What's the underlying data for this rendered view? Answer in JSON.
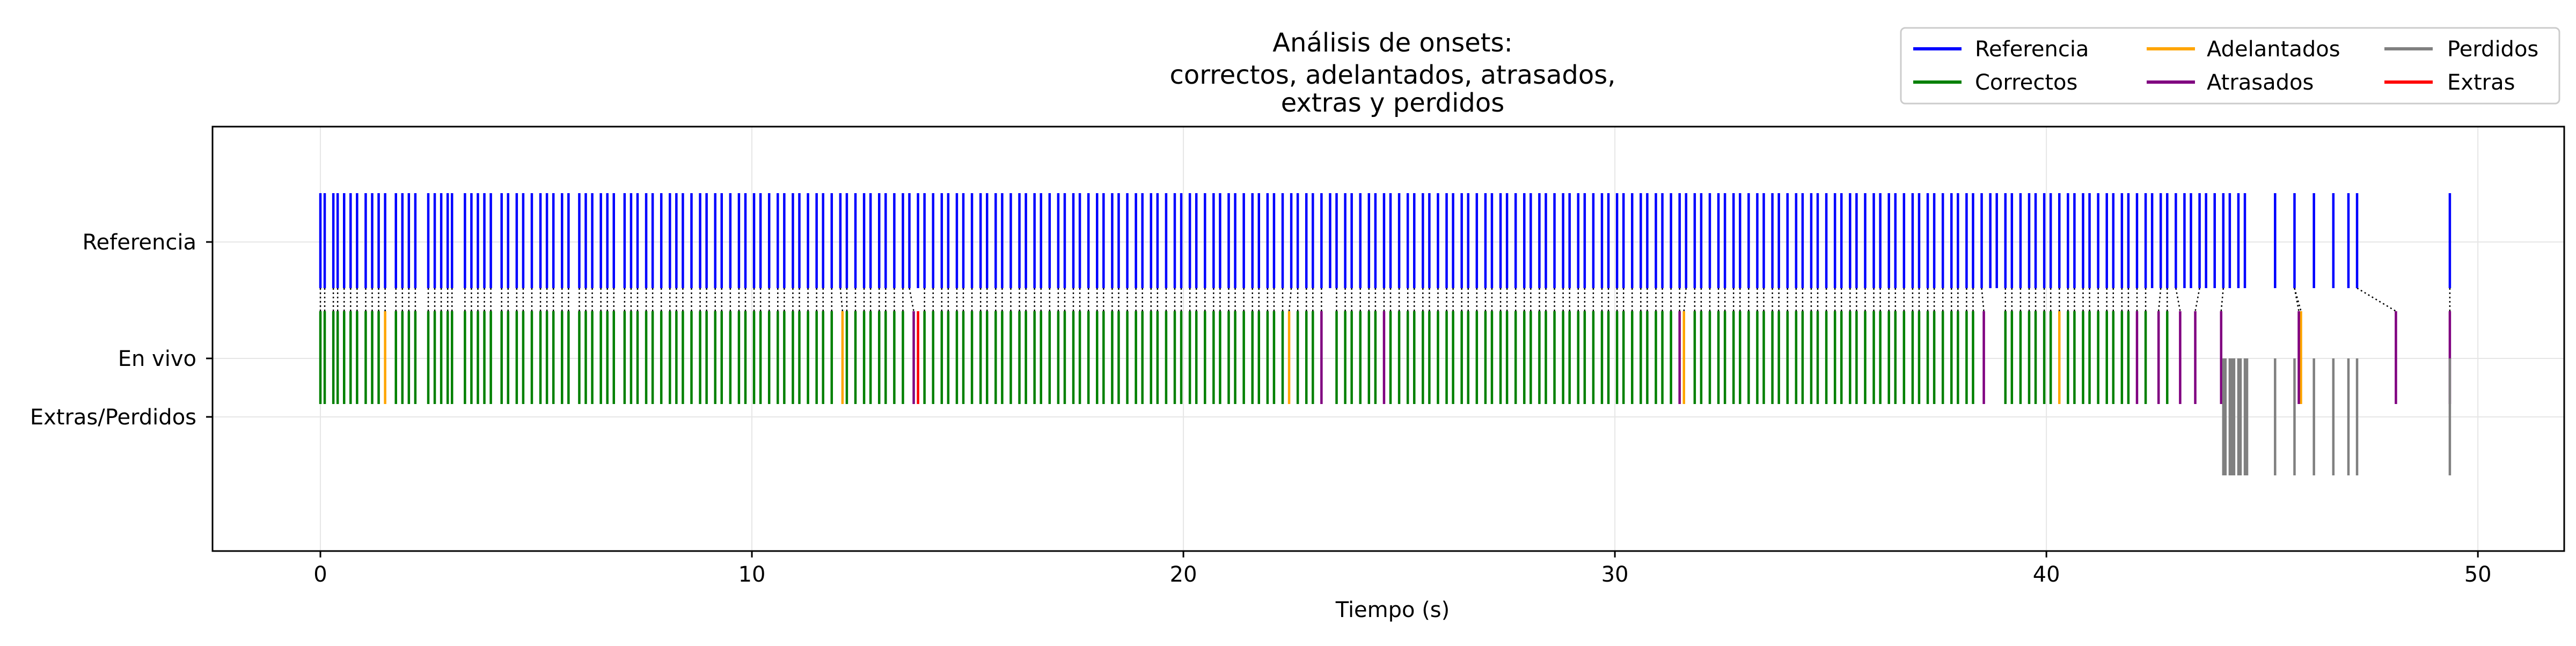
{
  "chart_data": {
    "type": "event-raster",
    "title_lines": [
      "Análisis de onsets:",
      "correctos, adelantados, atrasados,",
      "extras y perdidos"
    ],
    "xlabel": "Tiempo (s)",
    "xlim": [
      -2.5,
      52.0
    ],
    "xticks": [
      0,
      10,
      20,
      30,
      40,
      50
    ],
    "row_labels": [
      "Referencia",
      "En vivo",
      "Extras/Perdidos"
    ],
    "grid": true,
    "legend": {
      "placement": "top-right",
      "entries": [
        {
          "label": "Referencia",
          "color": "#0000ff"
        },
        {
          "label": "Correctos",
          "color": "#008000"
        },
        {
          "label": "Adelantados",
          "color": "#ffa500"
        },
        {
          "label": "Atrasados",
          "color": "#800080"
        },
        {
          "label": "Perdidos",
          "color": "#808080"
        },
        {
          "label": "Extras",
          "color": "#ff0000"
        }
      ]
    },
    "colors": {
      "reference": "#0000ff",
      "correct": "#008000",
      "early": "#ffa500",
      "late": "#800080",
      "missed": "#808080",
      "extra": "#ff0000",
      "match_line": "#000000"
    },
    "series": [
      {
        "name": "Referencia",
        "category": "reference",
        "times": [
          0.0,
          0.1,
          0.3,
          0.4,
          0.55,
          0.7,
          0.85,
          1.05,
          1.2,
          1.35,
          1.5,
          1.75,
          1.9,
          2.05,
          2.2,
          2.5,
          2.65,
          2.8,
          2.95,
          3.05,
          3.35,
          3.5,
          3.65,
          3.8,
          3.95,
          4.2,
          4.35,
          4.55,
          4.7,
          4.9,
          5.1,
          5.25,
          5.4,
          5.6,
          5.75,
          6.0,
          6.15,
          6.3,
          6.5,
          6.65,
          6.8,
          7.05,
          7.2,
          7.35,
          7.55,
          7.7,
          7.9,
          8.1,
          8.25,
          8.4,
          8.6,
          8.8,
          8.95,
          9.15,
          9.3,
          9.5,
          9.7,
          9.85,
          10.05,
          10.2,
          10.4,
          10.6,
          10.75,
          10.95,
          11.1,
          11.3,
          11.5,
          11.65,
          11.85,
          12.05,
          12.2,
          12.4,
          12.6,
          12.75,
          12.95,
          13.1,
          13.3,
          13.5,
          13.65,
          13.85,
          14.0,
          14.2,
          14.4,
          14.55,
          14.75,
          14.9,
          15.1,
          15.3,
          15.45,
          15.65,
          15.8,
          16.0,
          16.2,
          16.35,
          16.55,
          16.7,
          16.9,
          17.1,
          17.25,
          17.45,
          17.6,
          17.8,
          18.0,
          18.15,
          18.35,
          18.5,
          18.7,
          18.9,
          19.05,
          19.25,
          19.4,
          19.6,
          19.8,
          19.95,
          20.15,
          20.3,
          20.5,
          20.7,
          20.85,
          21.05,
          21.2,
          21.4,
          21.6,
          21.75,
          21.95,
          22.1,
          22.3,
          22.5,
          22.65,
          22.85,
          23.0,
          23.2,
          23.4,
          23.55,
          23.75,
          23.9,
          24.1,
          24.3,
          24.45,
          24.65,
          24.8,
          25.0,
          25.2,
          25.35,
          25.55,
          25.7,
          25.9,
          26.1,
          26.25,
          26.45,
          26.6,
          26.8,
          27.0,
          27.15,
          27.35,
          27.5,
          27.7,
          27.9,
          28.05,
          28.25,
          28.4,
          28.6,
          28.8,
          28.95,
          29.15,
          29.3,
          29.5,
          29.7,
          29.85,
          30.05,
          30.2,
          30.4,
          30.6,
          30.75,
          30.95,
          31.1,
          31.3,
          31.5,
          31.65,
          31.85,
          32.0,
          32.2,
          32.4,
          32.55,
          32.75,
          32.9,
          33.1,
          33.3,
          33.45,
          33.65,
          33.8,
          34.0,
          34.2,
          34.35,
          34.55,
          34.7,
          34.9,
          35.1,
          35.25,
          35.45,
          35.6,
          35.8,
          36.0,
          36.15,
          36.35,
          36.5,
          36.7,
          36.9,
          37.05,
          37.25,
          37.4,
          37.6,
          37.8,
          37.95,
          38.15,
          38.3,
          38.5,
          38.7,
          38.85,
          39.05,
          39.2,
          39.4,
          39.6,
          39.75,
          39.95,
          40.1,
          40.3,
          40.5,
          40.65,
          40.85,
          41.0,
          41.2,
          41.4,
          41.55,
          41.75,
          41.9,
          42.1,
          42.3,
          42.45,
          42.65,
          42.8,
          43.0,
          43.2,
          43.35,
          43.55,
          43.7,
          43.9,
          44.1,
          44.25,
          44.45,
          44.6,
          45.3,
          45.75,
          46.2,
          46.65,
          47.0,
          47.2,
          49.35
        ]
      },
      {
        "name": "Correctos",
        "category": "correct",
        "times": [
          0.0,
          0.1,
          0.3,
          0.4,
          0.55,
          0.7,
          0.85,
          1.05,
          1.2,
          1.35,
          1.75,
          1.9,
          2.05,
          2.2,
          2.5,
          2.65,
          2.8,
          2.95,
          3.05,
          3.35,
          3.5,
          3.65,
          3.8,
          3.95,
          4.2,
          4.35,
          4.55,
          4.7,
          4.9,
          5.1,
          5.25,
          5.4,
          5.6,
          5.75,
          6.0,
          6.15,
          6.3,
          6.5,
          6.65,
          6.8,
          7.05,
          7.2,
          7.35,
          7.55,
          7.7,
          7.9,
          8.1,
          8.25,
          8.4,
          8.6,
          8.8,
          8.95,
          9.15,
          9.3,
          9.5,
          9.7,
          9.85,
          10.05,
          10.2,
          10.4,
          10.6,
          10.75,
          10.95,
          11.1,
          11.3,
          11.5,
          11.65,
          11.85,
          12.2,
          12.4,
          12.6,
          12.75,
          12.95,
          13.1,
          13.3,
          13.5,
          14.0,
          14.2,
          14.4,
          14.55,
          14.75,
          14.9,
          15.1,
          15.3,
          15.45,
          15.65,
          15.8,
          16.0,
          16.2,
          16.35,
          16.55,
          16.7,
          16.9,
          17.1,
          17.25,
          17.45,
          17.6,
          17.8,
          18.0,
          18.15,
          18.35,
          18.5,
          18.7,
          18.9,
          19.05,
          19.25,
          19.4,
          19.6,
          19.8,
          19.95,
          20.15,
          20.3,
          20.5,
          20.7,
          20.85,
          21.05,
          21.2,
          21.4,
          21.6,
          21.75,
          21.95,
          22.1,
          22.3,
          22.65,
          22.85,
          23.0,
          23.55,
          23.75,
          23.9,
          24.1,
          24.3,
          24.45,
          24.8,
          25.0,
          25.2,
          25.35,
          25.55,
          25.7,
          25.9,
          26.1,
          26.25,
          26.45,
          26.6,
          26.8,
          27.0,
          27.15,
          27.35,
          27.5,
          27.7,
          27.9,
          28.05,
          28.25,
          28.4,
          28.6,
          28.8,
          28.95,
          29.15,
          29.3,
          29.5,
          29.7,
          29.85,
          30.05,
          30.2,
          30.4,
          30.6,
          30.75,
          30.95,
          31.1,
          31.3,
          31.85,
          32.0,
          32.2,
          32.4,
          32.55,
          32.75,
          32.9,
          33.1,
          33.3,
          33.45,
          33.65,
          33.8,
          34.0,
          34.2,
          34.35,
          34.55,
          34.7,
          34.9,
          35.1,
          35.25,
          35.45,
          35.6,
          35.8,
          36.0,
          36.15,
          36.35,
          36.5,
          36.7,
          36.9,
          37.05,
          37.25,
          37.4,
          37.6,
          37.8,
          37.95,
          38.15,
          38.3,
          39.05,
          39.2,
          39.4,
          39.6,
          39.75,
          39.95,
          40.1,
          40.5,
          40.65,
          40.85,
          41.0,
          41.2,
          41.4,
          41.55,
          41.75,
          41.9,
          42.3,
          42.8
        ]
      },
      {
        "name": "Adelantados",
        "category": "early",
        "times": [
          1.5,
          12.1,
          22.45,
          31.6,
          40.3,
          45.9
        ]
      },
      {
        "name": "Atrasados",
        "category": "late",
        "times": [
          13.75,
          23.2,
          24.65,
          31.5,
          38.55,
          42.1,
          42.6,
          43.1,
          43.45,
          44.05,
          45.85,
          48.1,
          49.35
        ]
      },
      {
        "name": "Extras",
        "category": "extra",
        "times": [
          13.85
        ]
      },
      {
        "name": "Perdidos",
        "category": "missed",
        "times": [
          44.1,
          44.15,
          44.25,
          44.3,
          44.35,
          44.45,
          44.5,
          44.6,
          44.65,
          45.3,
          45.75,
          46.2,
          46.65,
          47.0,
          47.2,
          49.35
        ]
      }
    ]
  }
}
